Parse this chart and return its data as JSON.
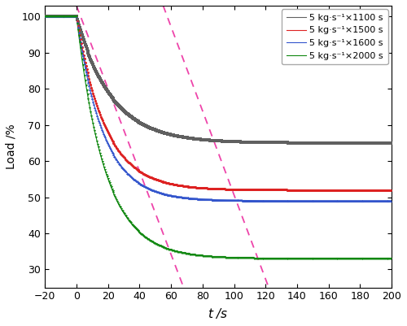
{
  "title": "",
  "xlabel": "$t$ /s",
  "ylabel": "Load /%",
  "xlim": [
    -20,
    200
  ],
  "ylim": [
    25,
    103
  ],
  "yticks": [
    30,
    40,
    50,
    60,
    70,
    80,
    90,
    100
  ],
  "xticks": [
    -20,
    0,
    20,
    40,
    60,
    80,
    100,
    120,
    140,
    160,
    180,
    200
  ],
  "series": [
    {
      "label": "5 kg·s⁻¹×1100 s",
      "color": "#606060",
      "marker": "s",
      "final_load": 65.0,
      "tau": 22.0
    },
    {
      "label": "5 kg·s⁻¹×1500 s",
      "color": "#dd2222",
      "marker": "o",
      "final_load": 52.0,
      "tau": 18.0
    },
    {
      "label": "5 kg·s⁻¹×1600 s",
      "color": "#3355cc",
      "marker": "^",
      "final_load": 49.0,
      "tau": 17.0
    },
    {
      "label": "5 kg·s⁻¹×2000 s",
      "color": "#118811",
      "marker": "v",
      "final_load": 33.0,
      "tau": 18.0
    }
  ],
  "dashed_color": "#ee44aa",
  "dashed_lines": [
    {
      "x": [
        0.0,
        68.0
      ],
      "y": [
        103.0,
        25.0
      ]
    },
    {
      "x": [
        55.0,
        122.0
      ],
      "y": [
        103.0,
        25.0
      ]
    }
  ],
  "background_color": "#ffffff"
}
